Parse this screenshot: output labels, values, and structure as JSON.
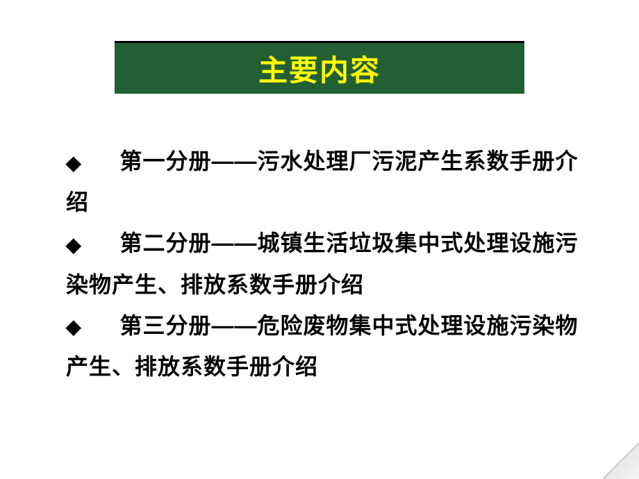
{
  "title": {
    "text": "主要内容",
    "bg_color": "#226033",
    "text_color": "#ffff00",
    "border_top_color": "#000000",
    "fontsize": 42
  },
  "bullets": [
    {
      "marker": "◆",
      "text": "　第一分册——污水处理厂污泥产生系数手册介绍"
    },
    {
      "marker": "◆",
      "text": "　第二分册——城镇生活垃圾集中式处理设施污染物产生、排放系数手册介绍"
    },
    {
      "marker": "◆",
      "text": "　第三分册——危险废物集中式处理设施污染物产生、排放系数手册介绍"
    }
  ],
  "body_style": {
    "text_color": "#000000",
    "fontsize": 32,
    "line_height": 1.85
  }
}
